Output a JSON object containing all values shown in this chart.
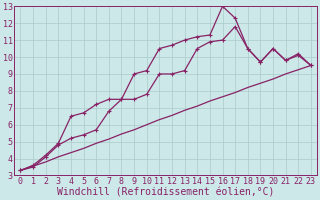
{
  "xlabel": "Windchill (Refroidissement éolien,°C)",
  "bg_color": "#cce8e8",
  "line_color": "#882266",
  "grid_color": "#aacccc",
  "xlim": [
    -0.5,
    23.5
  ],
  "ylim": [
    3,
    13
  ],
  "xticks": [
    0,
    1,
    2,
    3,
    4,
    5,
    6,
    7,
    8,
    9,
    10,
    11,
    12,
    13,
    14,
    15,
    16,
    17,
    18,
    19,
    20,
    21,
    22,
    23
  ],
  "yticks": [
    3,
    4,
    5,
    6,
    7,
    8,
    9,
    10,
    11,
    12,
    13
  ],
  "line_smooth_x": [
    0,
    1,
    2,
    3,
    4,
    5,
    6,
    7,
    8,
    9,
    10,
    11,
    12,
    13,
    14,
    15,
    16,
    17,
    18,
    19,
    20,
    21,
    22,
    23
  ],
  "line_smooth_y": [
    3.3,
    3.55,
    3.8,
    4.1,
    4.35,
    4.6,
    4.9,
    5.15,
    5.45,
    5.7,
    6.0,
    6.3,
    6.55,
    6.85,
    7.1,
    7.4,
    7.65,
    7.9,
    8.2,
    8.45,
    8.7,
    9.0,
    9.25,
    9.5
  ],
  "line_upper_x": [
    0,
    1,
    2,
    3,
    4,
    5,
    6,
    7,
    8,
    9,
    10,
    11,
    12,
    13,
    14,
    15,
    16,
    17,
    18,
    19,
    20,
    21,
    22,
    23
  ],
  "line_upper_y": [
    3.3,
    3.6,
    4.2,
    4.9,
    6.5,
    6.7,
    7.2,
    7.5,
    7.5,
    9.0,
    9.2,
    10.5,
    10.7,
    11.0,
    11.2,
    11.3,
    13.0,
    12.3,
    10.5,
    9.7,
    10.5,
    9.8,
    10.1,
    9.5
  ],
  "line_lower_x": [
    0,
    1,
    2,
    3,
    4,
    5,
    6,
    7,
    8,
    9,
    10,
    11,
    12,
    13,
    14,
    15,
    16,
    17,
    18,
    19,
    20,
    21,
    22,
    23
  ],
  "line_lower_y": [
    3.3,
    3.5,
    4.1,
    4.8,
    5.2,
    5.4,
    5.7,
    6.8,
    7.5,
    7.5,
    7.8,
    9.0,
    9.0,
    9.2,
    10.5,
    10.9,
    11.0,
    11.8,
    10.5,
    9.7,
    10.5,
    9.8,
    10.2,
    9.5
  ],
  "marker": "+",
  "marker_size": 3,
  "linewidth": 0.9,
  "xlabel_fontsize": 7,
  "tick_fontsize": 6
}
